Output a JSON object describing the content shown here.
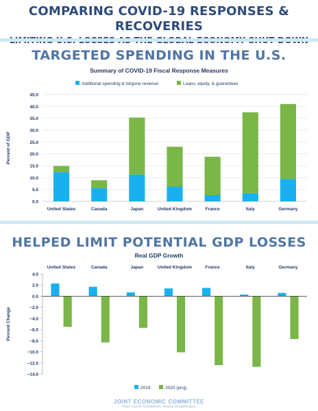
{
  "header": {
    "title": "COMPARING COVID-19 RESPONSES & RECOVERIES",
    "subtitle": "LIMITING U.S. LOSSES AS THE GLOBAL ECONOMY SHUT DOWN"
  },
  "section1": {
    "title": "TARGETED SPENDING IN THE U.S."
  },
  "section2": {
    "title": "HELPED LIMIT POTENTIAL GDP LOSSES"
  },
  "footer": {
    "org": "JOINT ECONOMIC COMMITTEE",
    "note": "Rep. David Schweikert, House Republicans"
  },
  "colors": {
    "blue": "#1ab0f0",
    "green": "#7ab648"
  },
  "chart_data": [
    {
      "type": "bar",
      "stacked": true,
      "title": "Summary of COVID-19 Fiscal Response Measures",
      "ylabel": "Percent of GDP",
      "categories": [
        "United States",
        "Canada",
        "Japan",
        "United Kingdom",
        "France",
        "Italy",
        "Germany"
      ],
      "series": [
        {
          "name": "Additional spending & forgone revenue",
          "values": [
            12.3,
            5.6,
            11.3,
            6.2,
            2.6,
            3.5,
            9.4
          ]
        },
        {
          "name": "Loans, equity, & guarantees",
          "values": [
            2.6,
            3.3,
            24.0,
            16.8,
            16.2,
            34.0,
            31.6
          ]
        }
      ],
      "ylim": [
        0,
        45
      ],
      "yticks": [
        "0.0",
        "5.0",
        "10.0",
        "15.0",
        "20.0",
        "25.0",
        "30.0",
        "35.0",
        "40.0",
        "45.0"
      ],
      "grid": true,
      "legend": "top"
    },
    {
      "type": "bar",
      "title": "Real GDP Growth",
      "ylabel": "Percent Change",
      "categories": [
        "United States",
        "Canada",
        "Japan",
        "United Kingdom",
        "France",
        "Italy",
        "Germany"
      ],
      "series": [
        {
          "name": "2019",
          "values": [
            2.3,
            1.7,
            0.7,
            1.4,
            1.5,
            0.3,
            0.6
          ]
        },
        {
          "name": "2020 (proj)",
          "values": [
            -5.5,
            -8.3,
            -5.7,
            -10.1,
            -12.4,
            -12.7,
            -7.7
          ]
        }
      ],
      "ylim": [
        -14,
        4
      ],
      "yticks": [
        "4.0",
        "2.0",
        "0.0",
        "−2.0",
        "−4.0",
        "−6.0",
        "−8.0",
        "−10.0",
        "−12.0",
        "−14.0"
      ],
      "grid": false,
      "legend": "bottom"
    }
  ]
}
